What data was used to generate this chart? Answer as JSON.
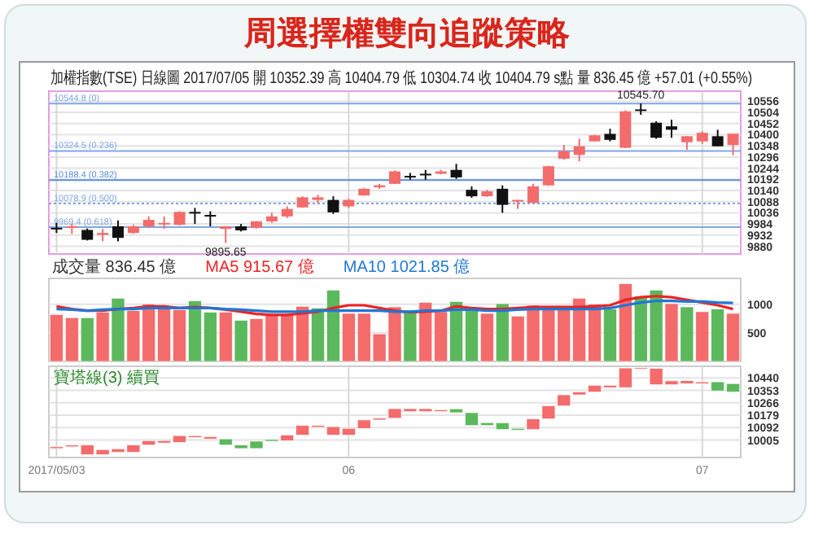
{
  "chart_data": [
    {
      "type": "candlestick",
      "title": "周選擇權雙向追蹤策略",
      "subtitle": "加權指數(TSE)  日線圖  2017/07/05  開 10352.39  高 10404.79  低 10304.74  收 10404.79  s點  量 836.45 億  +57.01 (+0.55%)",
      "categories": [
        null,
        null,
        null,
        null,
        null,
        null,
        null,
        null,
        null,
        null,
        null,
        null,
        null,
        null,
        null,
        null,
        null,
        null,
        null,
        null,
        null,
        null,
        null,
        null,
        null,
        null,
        null,
        null,
        null,
        null,
        null,
        null,
        null,
        null,
        null,
        null,
        null,
        null,
        null,
        null,
        null,
        null,
        null,
        null,
        null
      ],
      "ohlc": [
        [
          9966,
          9989,
          9942,
          9966
        ],
        [
          9966,
          9984,
          9938,
          9973
        ],
        [
          9956,
          9963,
          9907,
          9910
        ],
        [
          9933,
          9961,
          9903,
          9942
        ],
        [
          9973,
          10001,
          9903,
          9919
        ],
        [
          9942,
          9980,
          9938,
          9973
        ],
        [
          9973,
          10019,
          9966,
          10003
        ],
        [
          9984,
          10019,
          9961,
          9989
        ],
        [
          9980,
          10044,
          9977,
          10040
        ],
        [
          10040,
          10059,
          9984,
          10036
        ],
        [
          10026,
          10043,
          9973,
          10024
        ],
        [
          9961,
          9973,
          9895.65,
          9973
        ],
        [
          9973,
          9984,
          9949,
          9954
        ],
        [
          9966,
          9998,
          9963,
          9996
        ],
        [
          9996,
          10036,
          9989,
          10019
        ],
        [
          10019,
          10066,
          10012,
          10054
        ],
        [
          10061,
          10113,
          10059,
          10108
        ],
        [
          10096,
          10120,
          10078,
          10108
        ],
        [
          10096,
          10113,
          10031,
          10038
        ],
        [
          10066,
          10101,
          10059,
          10096
        ],
        [
          10117,
          10152,
          10115,
          10148
        ],
        [
          10155,
          10171,
          10148,
          10164
        ],
        [
          10171,
          10234,
          10169,
          10229
        ],
        [
          10208,
          10222,
          10190,
          10206
        ],
        [
          10218,
          10236,
          10190,
          10213
        ],
        [
          10218,
          10236,
          10215,
          10229
        ],
        [
          10236,
          10264,
          10194,
          10201
        ],
        [
          10143,
          10159,
          10106,
          10113
        ],
        [
          10113,
          10143,
          10110,
          10136
        ],
        [
          10148,
          10164,
          10036,
          10073
        ],
        [
          10089,
          10096,
          10054,
          10096
        ],
        [
          10082,
          10171,
          10080,
          10159
        ],
        [
          10164,
          10255,
          10162,
          10253
        ],
        [
          10288,
          10353,
          10283,
          10323
        ],
        [
          10306,
          10381,
          10276,
          10346
        ],
        [
          10369,
          10400,
          10367,
          10397
        ],
        [
          10404,
          10428,
          10369,
          10376
        ],
        [
          10339,
          10514,
          10337,
          10509
        ],
        [
          10518,
          10545.7,
          10493,
          10516
        ],
        [
          10456,
          10463,
          10381,
          10386
        ],
        [
          10439,
          10470,
          10386,
          10423
        ],
        [
          10365,
          10393,
          10330,
          10393
        ],
        [
          10369,
          10416,
          10358,
          10409
        ],
        [
          10393,
          10423,
          10346,
          10346
        ],
        [
          10352.39,
          10404.79,
          10304.74,
          10404.79
        ]
      ],
      "colors": [
        "#111111",
        "#f46b6b",
        "#111111",
        "#f46b6b",
        "#111111",
        "#f46b6b",
        "#f46b6b",
        "#f46b6b",
        "#f46b6b",
        "#111111",
        "#111111",
        "#f46b6b",
        "#111111",
        "#f46b6b",
        "#f46b6b",
        "#f46b6b",
        "#f46b6b",
        "#f46b6b",
        "#111111",
        "#f46b6b",
        "#f46b6b",
        "#f46b6b",
        "#f46b6b",
        "#111111",
        "#111111",
        "#f46b6b",
        "#111111",
        "#111111",
        "#f46b6b",
        "#111111",
        "#f46b6b",
        "#f46b6b",
        "#f46b6b",
        "#f46b6b",
        "#f46b6b",
        "#f46b6b",
        "#111111",
        "#f46b6b",
        "#111111",
        "#111111",
        "#111111",
        "#f46b6b",
        "#f46b6b",
        "#111111",
        "#f46b6b"
      ],
      "ylim": [
        9844,
        10603
      ],
      "yticks": [
        9880,
        9932,
        9984,
        10036,
        10088,
        10140,
        10192,
        10244,
        10296,
        10348,
        10400,
        10452,
        10504,
        10556
      ],
      "grid": true,
      "tick_labels": "y",
      "ref_lines": [
        {
          "axis": "y",
          "value": 10544.8,
          "label": "10544.8 (0)",
          "color": "#7fa6e6",
          "line_style": "solid"
        },
        {
          "axis": "y",
          "value": 10324.5,
          "label": "10324.5 (0.236)",
          "color": "#7fa6e6",
          "line_style": "solid"
        },
        {
          "axis": "y",
          "value": 10188.4,
          "label": "10188.4 (0.382)",
          "color": "#5b8ee0",
          "line_style": "solid"
        },
        {
          "axis": "y",
          "value": 10078.9,
          "label": "10078.9 (0.500)",
          "color": "#7fa6e6",
          "line_style": "dotted"
        },
        {
          "axis": "y",
          "value": 9969.4,
          "label": "9969.4 (0.618)",
          "color": "#7fa6e6",
          "line_style": "solid"
        }
      ],
      "annotations": [
        {
          "text": "10545.70",
          "y": 10545.7
        },
        {
          "text": "9895.65",
          "y": 9895.65
        }
      ]
    },
    {
      "type": "bar",
      "title": "成交量 836.45 億",
      "categories": [
        null,
        null,
        null,
        null,
        null,
        null,
        null,
        null,
        null,
        null,
        null,
        null,
        null,
        null,
        null,
        null,
        null,
        null,
        null,
        null,
        null,
        null,
        null,
        null,
        null,
        null,
        null,
        null,
        null,
        null,
        null,
        null,
        null,
        null,
        null,
        null,
        null,
        null,
        null,
        null,
        null,
        null,
        null,
        null,
        null
      ],
      "series": [
        {
          "values": [
            820,
            764,
            764,
            858,
            1103,
            886,
            1000,
            934,
            905,
            1056,
            858,
            858,
            717,
            745,
            811,
            811,
            962,
            934,
            1245,
            839,
            839,
            481,
            952,
            886,
            1028,
            868,
            1047,
            934,
            839,
            1009,
            792,
            981,
            915,
            915,
            1103,
            1000,
            915,
            1358,
            1141,
            1245,
            1009,
            952,
            868,
            915,
            839
          ],
          "colors": [
            "#f46b6b",
            "#f46b6b",
            "#5cb85c",
            "#f46b6b",
            "#5cb85c",
            "#f46b6b",
            "#f46b6b",
            "#f46b6b",
            "#f46b6b",
            "#5cb85c",
            "#5cb85c",
            "#f46b6b",
            "#5cb85c",
            "#f46b6b",
            "#f46b6b",
            "#f46b6b",
            "#f46b6b",
            "#5cb85c",
            "#5cb85c",
            "#f46b6b",
            "#f46b6b",
            "#f46b6b",
            "#f46b6b",
            "#5cb85c",
            "#f46b6b",
            "#f46b6b",
            "#5cb85c",
            "#5cb85c",
            "#f46b6b",
            "#5cb85c",
            "#f46b6b",
            "#f46b6b",
            "#f46b6b",
            "#f46b6b",
            "#f46b6b",
            "#f46b6b",
            "#5cb85c",
            "#f46b6b",
            "#5cb85c",
            "#5cb85c",
            "#f46b6b",
            "#5cb85c",
            "#f46b6b",
            "#5cb85c",
            "#f46b6b"
          ]
        },
        {
          "name": "MA5 915.67 億",
          "type": "line",
          "color": "#ee2222",
          "values": [
            962,
            915,
            886,
            886,
            915,
            934,
            962,
            962,
            934,
            952,
            934,
            905,
            868,
            830,
            811,
            811,
            839,
            868,
            934,
            981,
            981,
            934,
            886,
            858,
            868,
            886,
            962,
            934,
            915,
            915,
            934,
            952,
            952,
            952,
            952,
            962,
            981,
            1075,
            1122,
            1141,
            1122,
            1075,
            1028,
            981,
            915.67
          ]
        },
        {
          "name": "MA10 1021.85 億",
          "type": "line",
          "color": "#1f77d4",
          "values": [
            915,
            905,
            886,
            905,
            915,
            915,
            934,
            934,
            934,
            934,
            934,
            915,
            905,
            886,
            868,
            868,
            868,
            886,
            886,
            886,
            886,
            886,
            868,
            868,
            886,
            886,
            905,
            905,
            886,
            886,
            905,
            915,
            915,
            915,
            915,
            915,
            934,
            981,
            1028,
            1056,
            1056,
            1047,
            1047,
            1028,
            1021.85
          ]
        }
      ],
      "ylim": [
        0,
        1450
      ],
      "yticks": [
        500,
        1000
      ],
      "grid": "y",
      "tick_labels": "y",
      "legend": "top left"
    },
    {
      "type": "bar",
      "title": "寶塔線(3) 續買",
      "categories": [
        "2017/05/03",
        null,
        null,
        null,
        null,
        null,
        null,
        null,
        null,
        null,
        null,
        null,
        null,
        null,
        null,
        null,
        null,
        null,
        null,
        "06",
        null,
        null,
        null,
        null,
        null,
        null,
        null,
        null,
        null,
        null,
        null,
        null,
        null,
        null,
        null,
        null,
        null,
        null,
        null,
        null,
        null,
        null,
        "07",
        null,
        null
      ],
      "base": [
        9946,
        9958,
        9903,
        9903,
        9919,
        9919,
        9970,
        9985,
        9989,
        10024,
        10013,
        9970,
        9946,
        9946,
        9997,
        10001,
        10040,
        10095,
        10040,
        10040,
        10087,
        10146,
        10158,
        10205,
        10205,
        10205,
        10197,
        10107,
        10107,
        10079,
        10075,
        10079,
        10154,
        10244,
        10322,
        10342,
        10373,
        10373,
        10503,
        10393,
        10393,
        10401,
        10401,
        10350,
        10342
      ],
      "values": [
        12,
        12,
        67,
        35,
        24,
        51,
        31,
        16,
        47,
        12,
        16,
        43,
        24,
        51,
        12,
        39,
        67,
        12,
        59,
        47,
        59,
        12,
        67,
        20,
        20,
        12,
        27,
        90,
        20,
        47,
        12,
        74,
        90,
        78,
        20,
        47,
        16,
        137,
        8,
        114,
        27,
        20,
        12,
        63,
        59
      ],
      "colors": [
        "#f46b6b",
        "#f46b6b",
        "#f46b6b",
        "#f46b6b",
        "#f46b6b",
        "#f46b6b",
        "#f46b6b",
        "#f46b6b",
        "#f46b6b",
        "#f46b6b",
        "#f46b6b",
        "#5cb85c",
        "#5cb85c",
        "#5cb85c",
        "#5cb85c",
        "#f46b6b",
        "#f46b6b",
        "#f46b6b",
        "#f46b6b",
        "#f46b6b",
        "#f46b6b",
        "#f46b6b",
        "#f46b6b",
        "#f46b6b",
        "#f46b6b",
        "#f46b6b",
        "#5cb85c",
        "#5cb85c",
        "#5cb85c",
        "#5cb85c",
        "#5cb85c",
        "#f46b6b",
        "#f46b6b",
        "#f46b6b",
        "#f46b6b",
        "#f46b6b",
        "#f46b6b",
        "#f46b6b",
        "#f46b6b",
        "#f46b6b",
        "#f46b6b",
        "#f46b6b",
        "#f46b6b",
        "#5cb85c",
        "#5cb85c"
      ],
      "ylim": [
        9883,
        10522
      ],
      "yticks": [
        10005,
        10092,
        10179,
        10266,
        10353,
        10440
      ],
      "grid": true
    }
  ]
}
